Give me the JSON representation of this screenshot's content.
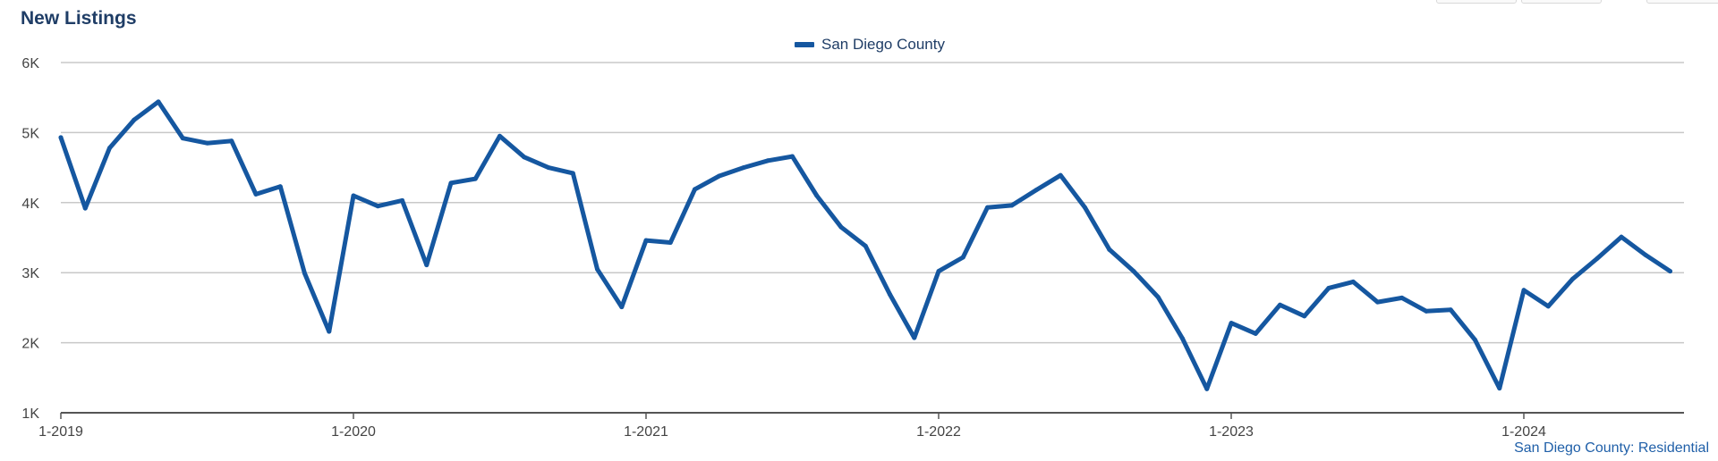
{
  "title": "New Listings",
  "source_label": "San Diego County: Residential",
  "colors": {
    "series": "#1557a0",
    "grid": "#c8c8c8",
    "axis": "#555555",
    "title": "#1f3d66"
  },
  "chart_data": {
    "type": "line",
    "title": "New Listings",
    "xlabel": "",
    "ylabel": "",
    "ylim": [
      1000,
      6000
    ],
    "y_ticks": [
      {
        "value": 6000,
        "label": "6K"
      },
      {
        "value": 5000,
        "label": "5K"
      },
      {
        "value": 4000,
        "label": "4K"
      },
      {
        "value": 3000,
        "label": "3K"
      },
      {
        "value": 2000,
        "label": "2K"
      },
      {
        "value": 1000,
        "label": "1K"
      }
    ],
    "x_ticks": [
      {
        "value": 0,
        "label": "1-2019"
      },
      {
        "value": 12,
        "label": "1-2020"
      },
      {
        "value": 24,
        "label": "1-2021"
      },
      {
        "value": 36,
        "label": "1-2022"
      },
      {
        "value": 48,
        "label": "1-2023"
      },
      {
        "value": 60,
        "label": "1-2024"
      }
    ],
    "x_start": "1-2019",
    "x_interval": "month",
    "grid": true,
    "legend_position": "top-center",
    "series": [
      {
        "name": "San Diego County",
        "values": [
          4930,
          3920,
          4780,
          5180,
          5440,
          4920,
          4850,
          4880,
          4120,
          4230,
          2990,
          2160,
          4100,
          3950,
          4030,
          3110,
          4280,
          4340,
          4950,
          4650,
          4500,
          4420,
          3050,
          2510,
          3460,
          3430,
          4190,
          4380,
          4500,
          4600,
          4660,
          4100,
          3650,
          3380,
          2690,
          2070,
          3020,
          3220,
          3930,
          3960,
          4180,
          4390,
          3930,
          3330,
          3020,
          2650,
          2060,
          1340,
          2280,
          2130,
          2540,
          2380,
          2780,
          2870,
          2580,
          2640,
          2450,
          2470,
          2040,
          1350,
          2750,
          2520,
          2910,
          3200,
          3510,
          3250,
          3020
        ]
      }
    ]
  }
}
